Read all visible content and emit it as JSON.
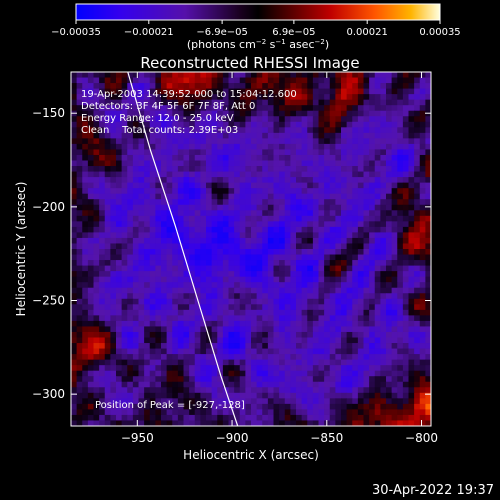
{
  "chart_data": {
    "type": "heatmap",
    "title": "Reconstructed RHESSI Image",
    "xlabel": "Heliocentric X (arcsec)",
    "ylabel": "Heliocentric Y (arcsec)",
    "xlim": [
      -985,
      -795
    ],
    "ylim": [
      -317,
      -128
    ],
    "x_ticks": [
      -950,
      -900,
      -850,
      -800
    ],
    "y_ticks": [
      -300,
      -250,
      -200,
      -150
    ],
    "x_tick_labels": [
      "−950",
      "−900",
      "−850",
      "−800"
    ],
    "y_tick_labels": [
      "−300",
      "−250",
      "−200",
      "−150"
    ],
    "colorbar": {
      "range": [
        -0.00035,
        0.00035
      ],
      "tick_values": [
        -0.00035,
        -0.00021,
        -6.9e-05,
        6.9e-05,
        0.00021,
        0.00035
      ],
      "tick_labels": [
        "−0.00035",
        "−0.00021",
        "−6.9e−05",
        "6.9e−05",
        "0.00021",
        "0.00035"
      ],
      "label_parts": [
        "(photons cm",
        "−2",
        " s",
        "−1",
        " asec",
        "−2",
        ")"
      ]
    },
    "annotations": [
      "19-Apr-2003 14:39:52.000 to 15:04:12.600",
      "Detectors: 3F 4F 5F 6F 7F 8F, Att 0",
      "Energy Range: 12.0 - 25.0 keV",
      "Clean    Total counts: 2.39E+03"
    ],
    "peak_label": "Position of Peak = [-927,-128]",
    "peak": [
      -927,
      -128
    ],
    "limb_curve": [
      [
        -955,
        -128
      ],
      [
        -943,
        -170
      ],
      [
        -930,
        -210
      ],
      [
        -918,
        -250
      ],
      [
        -906,
        -290
      ],
      [
        -897,
        -317
      ]
    ],
    "grid": false
  },
  "footer": {
    "timestamp": "30-Apr-2022 19:37"
  },
  "colors": {
    "background": "#000000",
    "text": "#ffffff",
    "min": "#0000ff",
    "zero": "#000000",
    "max": "#ffffff"
  }
}
